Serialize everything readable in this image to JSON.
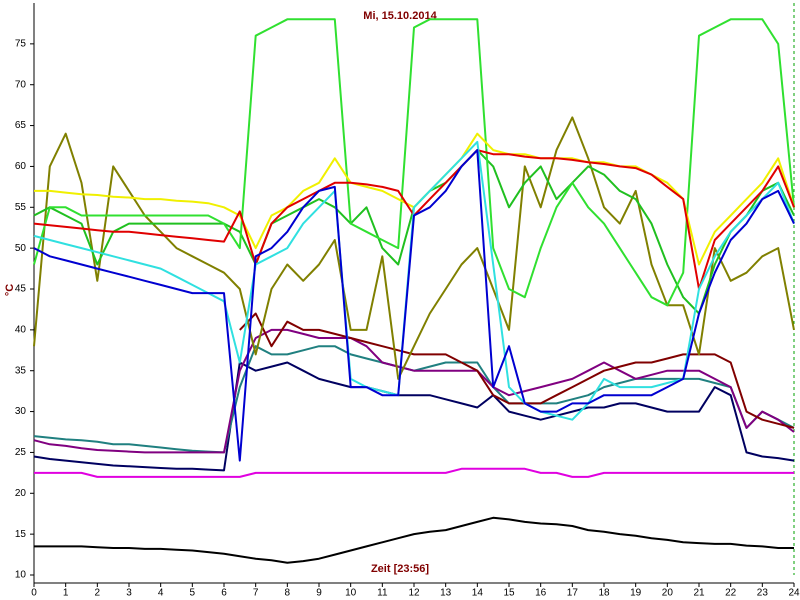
{
  "chart_data": {
    "type": "line",
    "title": "Mi, 15.10.2014",
    "x_label": "Zeit [23:56]",
    "y_label": "°C",
    "xlim": [
      0,
      24
    ],
    "ylim": [
      10,
      80
    ],
    "xticks": [
      0,
      1,
      2,
      3,
      4,
      5,
      6,
      7,
      8,
      9,
      10,
      11,
      12,
      13,
      14,
      15,
      16,
      17,
      18,
      19,
      20,
      21,
      22,
      23,
      24
    ],
    "yticks": [
      10,
      15,
      20,
      25,
      30,
      35,
      40,
      45,
      50,
      55,
      60,
      65,
      70,
      75
    ],
    "x": [
      0,
      0.5,
      1,
      1.5,
      2,
      2.5,
      3,
      3.5,
      4,
      4.5,
      5,
      5.5,
      6,
      6.5,
      7,
      7.5,
      8,
      8.5,
      9,
      9.5,
      10,
      10.5,
      11,
      11.5,
      12,
      12.5,
      13,
      13.5,
      14,
      14.5,
      15,
      15.5,
      16,
      16.5,
      17,
      17.5,
      18,
      18.5,
      19,
      19.5,
      20,
      20.5,
      21,
      21.5,
      22,
      22.5,
      23,
      23.5,
      24
    ],
    "series": [
      {
        "color": "#000000",
        "values": [
          13.5,
          13.5,
          13.5,
          13.5,
          13.4,
          13.3,
          13.3,
          13.2,
          13.2,
          13.1,
          13,
          12.8,
          12.6,
          12.3,
          12,
          11.8,
          11.5,
          11.7,
          12,
          12.5,
          13,
          13.5,
          14,
          14.5,
          15,
          15.3,
          15.5,
          16,
          16.5,
          17,
          16.8,
          16.5,
          16.3,
          16.2,
          16,
          15.5,
          15.3,
          15,
          14.8,
          14.5,
          14.3,
          14,
          13.9,
          13.8,
          13.8,
          13.6,
          13.5,
          13.3,
          13.3
        ]
      },
      {
        "color": "#e000e0",
        "values": [
          22.5,
          22.5,
          22.5,
          22.5,
          22,
          22,
          22,
          22,
          22,
          22,
          22,
          22,
          22,
          22,
          22.5,
          22.5,
          22.5,
          22.5,
          22.5,
          22.5,
          22.5,
          22.5,
          22.5,
          22.5,
          22.5,
          22.5,
          22.5,
          23,
          23,
          23,
          23,
          23,
          22.5,
          22.5,
          22,
          22,
          22.5,
          22.5,
          22.5,
          22.5,
          22.5,
          22.5,
          22.5,
          22.5,
          22.5,
          22.5,
          22.5,
          22.5,
          22.5
        ]
      },
      {
        "color": "#000060",
        "values": [
          24.5,
          24.2,
          24,
          23.8,
          23.6,
          23.4,
          23.3,
          23.2,
          23.1,
          23,
          23,
          22.9,
          22.8,
          36,
          35,
          35.5,
          36,
          35,
          34,
          33.5,
          33,
          33,
          32.5,
          32,
          32,
          32,
          31.5,
          31,
          30.5,
          32,
          30,
          29.5,
          29,
          29.5,
          30,
          30.5,
          30.5,
          31,
          31,
          30.5,
          30,
          30,
          30,
          33,
          32,
          25,
          24.5,
          24.3,
          24
        ]
      },
      {
        "color": "#208080",
        "values": [
          27,
          26.8,
          26.6,
          26.5,
          26.3,
          26,
          26,
          25.8,
          25.6,
          25.4,
          25.2,
          25.1,
          25,
          33,
          38,
          37,
          37,
          37.5,
          38,
          38,
          37,
          36.5,
          36,
          35.5,
          35,
          35.5,
          36,
          36,
          36,
          33,
          31,
          31,
          31,
          31,
          31.5,
          32,
          33,
          33.5,
          34,
          34,
          34,
          34,
          34,
          33.5,
          33,
          28,
          30,
          29,
          28
        ]
      },
      {
        "color": "#800080",
        "values": [
          26.5,
          26,
          25.8,
          25.5,
          25.3,
          25.2,
          25.1,
          25,
          25,
          25,
          25,
          25,
          25,
          35,
          39,
          40,
          40,
          39.5,
          39,
          39,
          39,
          38,
          36,
          35.5,
          35,
          35,
          35,
          35,
          35,
          33,
          32,
          32.5,
          33,
          33.5,
          34,
          35,
          36,
          35,
          34,
          34.5,
          35,
          35,
          35,
          34,
          33,
          28,
          30,
          29,
          27.5
        ]
      },
      {
        "color": "#800000",
        "values": [
          null,
          null,
          null,
          null,
          null,
          null,
          null,
          null,
          null,
          null,
          null,
          null,
          null,
          40,
          42,
          38,
          41,
          40,
          40,
          39.5,
          39,
          38.5,
          38,
          37.5,
          37,
          37,
          37,
          36,
          35,
          32,
          31,
          31,
          31,
          32,
          33,
          34,
          35,
          35.5,
          36,
          36,
          36.5,
          37,
          37,
          37,
          36,
          30,
          29,
          28.5,
          28
        ]
      },
      {
        "color": "#808000",
        "values": [
          38,
          60,
          64,
          58,
          46,
          60,
          57,
          54,
          52,
          50,
          49,
          48,
          47,
          45,
          37,
          45,
          48,
          46,
          48,
          51,
          40,
          40,
          49,
          34,
          38,
          42,
          45,
          48,
          50,
          45,
          40,
          60,
          55,
          62,
          66,
          61,
          55,
          53,
          57,
          48,
          43,
          43,
          37,
          50,
          46,
          47,
          49,
          50,
          40
        ]
      },
      {
        "color": "#20c020",
        "values": [
          54,
          55,
          54,
          53,
          48,
          52,
          53,
          53,
          53,
          53,
          53,
          53,
          53,
          52,
          48,
          53,
          54,
          55,
          56,
          55,
          53,
          55,
          50,
          48,
          55,
          57,
          58,
          60,
          62,
          60,
          55,
          58,
          60,
          56,
          58,
          60,
          59,
          57,
          56,
          53,
          48,
          44,
          42,
          48,
          52,
          54,
          57,
          58,
          54
        ]
      },
      {
        "color": "#30e030",
        "values": [
          48,
          55,
          55,
          54,
          54,
          54,
          54,
          54,
          54,
          54,
          54,
          54,
          53,
          50,
          76,
          77,
          78,
          78,
          78,
          78,
          53,
          52,
          51,
          50,
          77,
          78,
          78,
          78,
          78,
          50,
          45,
          44,
          50,
          55,
          58,
          55,
          53,
          50,
          47,
          44,
          43,
          47,
          76,
          77,
          78,
          78,
          78,
          75,
          55
        ]
      },
      {
        "color": "#f0f000",
        "values": [
          57,
          57,
          56.8,
          56.6,
          56.5,
          56.3,
          56.2,
          56,
          56,
          55.8,
          55.7,
          55.5,
          55,
          54,
          50,
          54,
          55,
          57,
          58,
          61,
          58,
          57.5,
          57,
          56,
          55,
          57,
          59,
          61,
          64,
          62,
          61.5,
          61.5,
          61,
          61,
          61,
          60.5,
          60.5,
          60,
          60,
          59,
          58,
          56,
          48,
          52,
          54,
          56,
          58,
          61,
          55
        ]
      },
      {
        "color": "#e00000",
        "values": [
          53,
          52.8,
          52.6,
          52.4,
          52.2,
          52,
          52,
          51.8,
          51.6,
          51.4,
          51.2,
          51,
          50.8,
          54.5,
          48,
          53,
          55,
          56,
          57,
          58,
          58,
          57.8,
          57.5,
          57,
          54,
          56,
          58,
          60,
          62,
          61.5,
          61.5,
          61.2,
          61,
          61,
          60.8,
          60.5,
          60.3,
          60,
          59.8,
          59,
          57.5,
          56,
          45,
          51,
          53,
          55,
          57,
          60,
          55
        ]
      },
      {
        "color": "#30e0e0",
        "values": [
          51.5,
          51,
          50.5,
          50,
          49.5,
          49,
          48.5,
          48,
          47.5,
          46.5,
          45.5,
          44.5,
          43.5,
          36,
          48,
          49,
          50,
          53,
          55,
          57,
          34,
          33,
          32.5,
          32,
          55,
          57,
          59,
          61,
          63,
          48,
          33,
          31,
          30,
          29.5,
          29,
          31,
          34,
          33,
          33,
          33,
          33.5,
          34,
          45,
          49,
          52,
          54,
          56,
          58,
          53
        ]
      },
      {
        "color": "#0000d0",
        "values": [
          50,
          49,
          48.5,
          48,
          47.5,
          47,
          46.5,
          46,
          45.5,
          45,
          44.5,
          44.5,
          44.5,
          24,
          49,
          50,
          52,
          55,
          57,
          57.5,
          33,
          33,
          32,
          32,
          54,
          55,
          57,
          60,
          62,
          33,
          38,
          31,
          30,
          30,
          31,
          31,
          32,
          32,
          32,
          32,
          33,
          34,
          42,
          47,
          51,
          53,
          56,
          57,
          53
        ]
      }
    ]
  }
}
